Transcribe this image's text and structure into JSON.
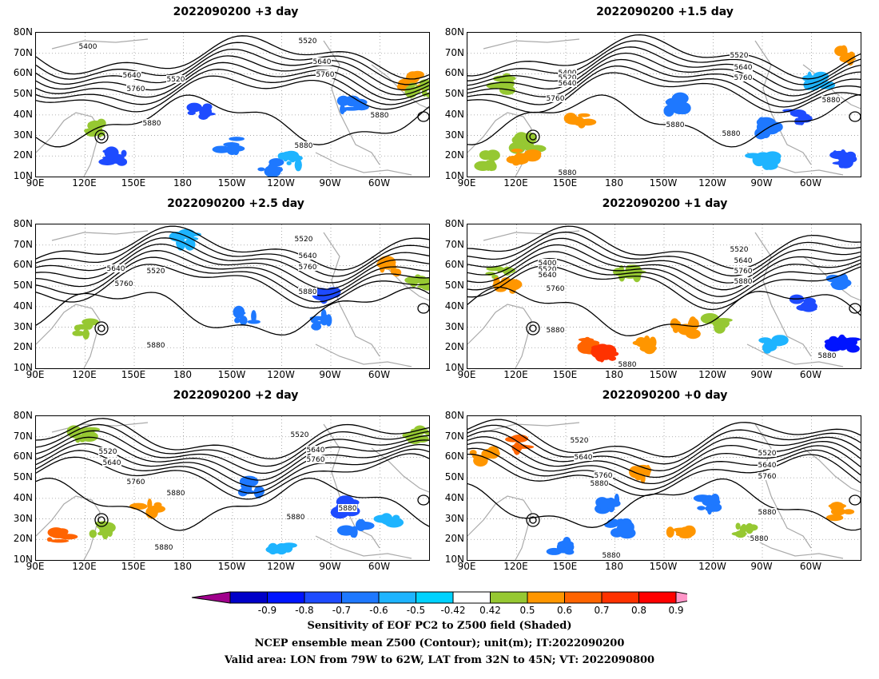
{
  "panels": [
    {
      "title": "2022090200  +3 day"
    },
    {
      "title": "2022090200  +1.5 day"
    },
    {
      "title": "2022090200  +2.5 day"
    },
    {
      "title": "2022090200  +1 day"
    },
    {
      "title": "2022090200  +2 day"
    },
    {
      "title": "2022090200  +0 day"
    }
  ],
  "axes": {
    "lat_labels": [
      "80N",
      "70N",
      "60N",
      "50N",
      "40N",
      "30N",
      "20N",
      "10N"
    ],
    "lon_labels": [
      "90E",
      "120E",
      "150E",
      "180",
      "150W",
      "120W",
      "90W",
      "60W"
    ]
  },
  "contour_labels": [
    "5400",
    "5520",
    "5640",
    "5760",
    "5880"
  ],
  "colorbar": {
    "ticks": [
      "-0.9",
      "-0.8",
      "-0.7",
      "-0.6",
      "-0.5",
      "-0.42",
      "0.42",
      "0.5",
      "0.6",
      "0.7",
      "0.8",
      "0.9"
    ],
    "colors": [
      "#a0008c",
      "#0000c8",
      "#0014ff",
      "#1e4bff",
      "#1e78ff",
      "#1eb4ff",
      "#00d2ff",
      "#ffffff",
      "#96c832",
      "#ff9600",
      "#ff6400",
      "#ff3200",
      "#ff0000",
      "#ff96c8"
    ]
  },
  "caption": {
    "line1": "Sensitivity of EOF PC2 to Z500 field (Shaded)",
    "line2": "NCEP ensemble mean Z500 (Contour); unit(m); IT:2022090200",
    "line3": "Valid area: LON from 79W to 62W, LAT from 32N to 45N; VT: 2022090800"
  }
}
